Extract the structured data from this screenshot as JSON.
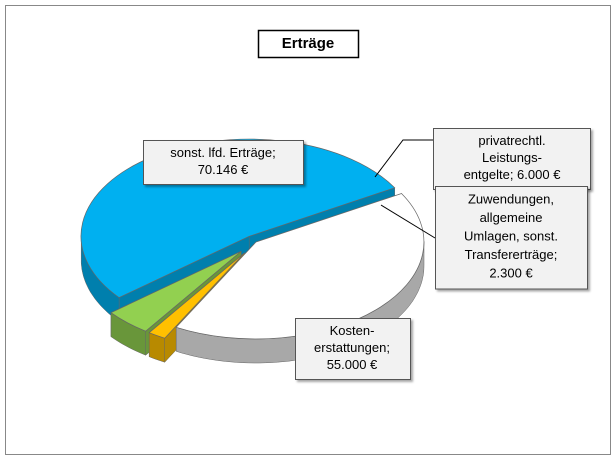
{
  "chart_data": {
    "type": "pie",
    "title": "Erträge",
    "values": [
      70146,
      6000,
      2300,
      55000
    ],
    "value_labels": [
      [
        "sonst. lfd. Erträge;",
        "70.146 €"
      ],
      [
        "privatrechtl.",
        "Leistungs-",
        "entgelte; 6.000 €"
      ],
      [
        "Zuwendungen,",
        "allgemeine",
        "Umlagen, sonst.",
        "Transfererträge;",
        "2.300 €"
      ],
      [
        "Kosten-",
        "erstattungen;",
        "55.000 €"
      ]
    ],
    "colors": [
      "#00b0f0",
      "#92d050",
      "#ffc000",
      "#ffffff"
    ]
  }
}
